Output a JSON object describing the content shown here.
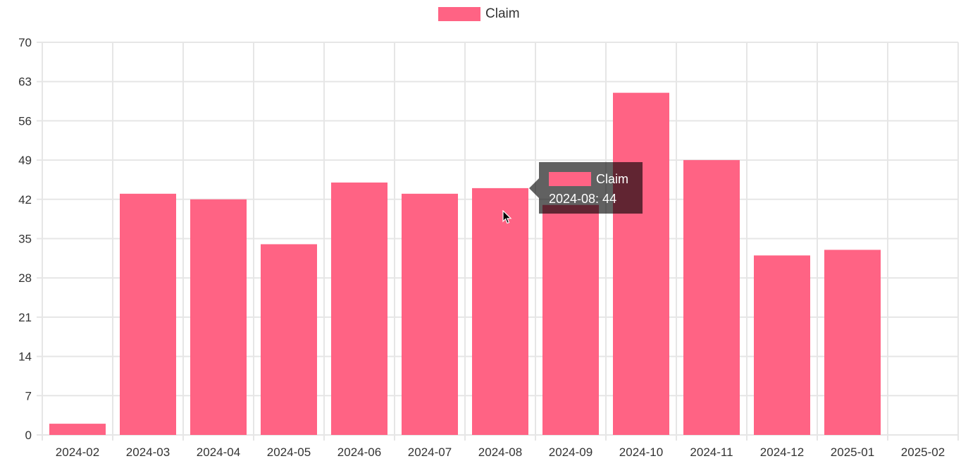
{
  "legend": {
    "label": "Claim"
  },
  "colors": {
    "bar": "#ff6384",
    "grid": "#e6e6e6",
    "axis_text": "#333333"
  },
  "tooltip": {
    "title": "Claim",
    "body": "2024-08: 44"
  },
  "chart_data": {
    "type": "bar",
    "categories": [
      "2024-02",
      "2024-03",
      "2024-04",
      "2024-05",
      "2024-06",
      "2024-07",
      "2024-08",
      "2024-09",
      "2024-10",
      "2024-11",
      "2024-12",
      "2025-01",
      "2025-02"
    ],
    "series": [
      {
        "name": "Claim",
        "values": [
          2,
          43,
          42,
          34,
          45,
          43,
          44,
          41,
          61,
          49,
          32,
          33,
          0
        ]
      }
    ],
    "ylim": [
      0,
      70
    ],
    "yticks": [
      0,
      7,
      14,
      21,
      28,
      35,
      42,
      49,
      56,
      63,
      70
    ],
    "grid": true,
    "legend_position": "top-center",
    "title": "",
    "xlabel": "",
    "ylabel": ""
  }
}
